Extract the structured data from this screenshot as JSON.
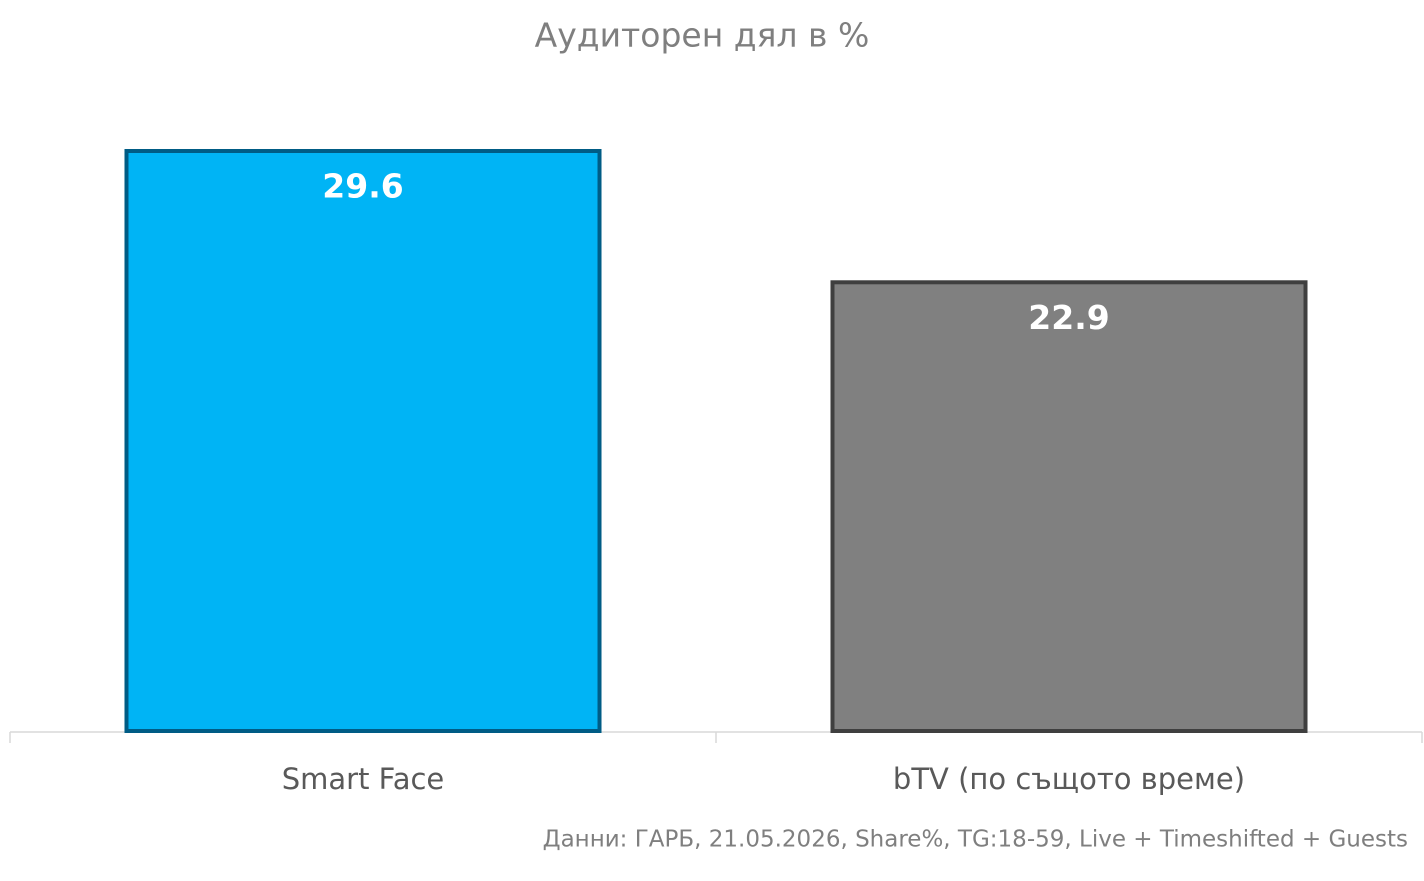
{
  "chart_data": {
    "type": "bar",
    "title": "Аудиторен дял в %",
    "categories": [
      "Smart Face",
      "bTV (по същото време)"
    ],
    "values": [
      29.6,
      22.9
    ],
    "colors": [
      "#00b4f5",
      "#808080"
    ],
    "edge_colors": [
      "#005c85",
      "#3f3f3f"
    ],
    "source": "Данни: ГАРБ, 21.05.2026, Share%, TG:18-59, Live + Timeshifted + Guests"
  }
}
